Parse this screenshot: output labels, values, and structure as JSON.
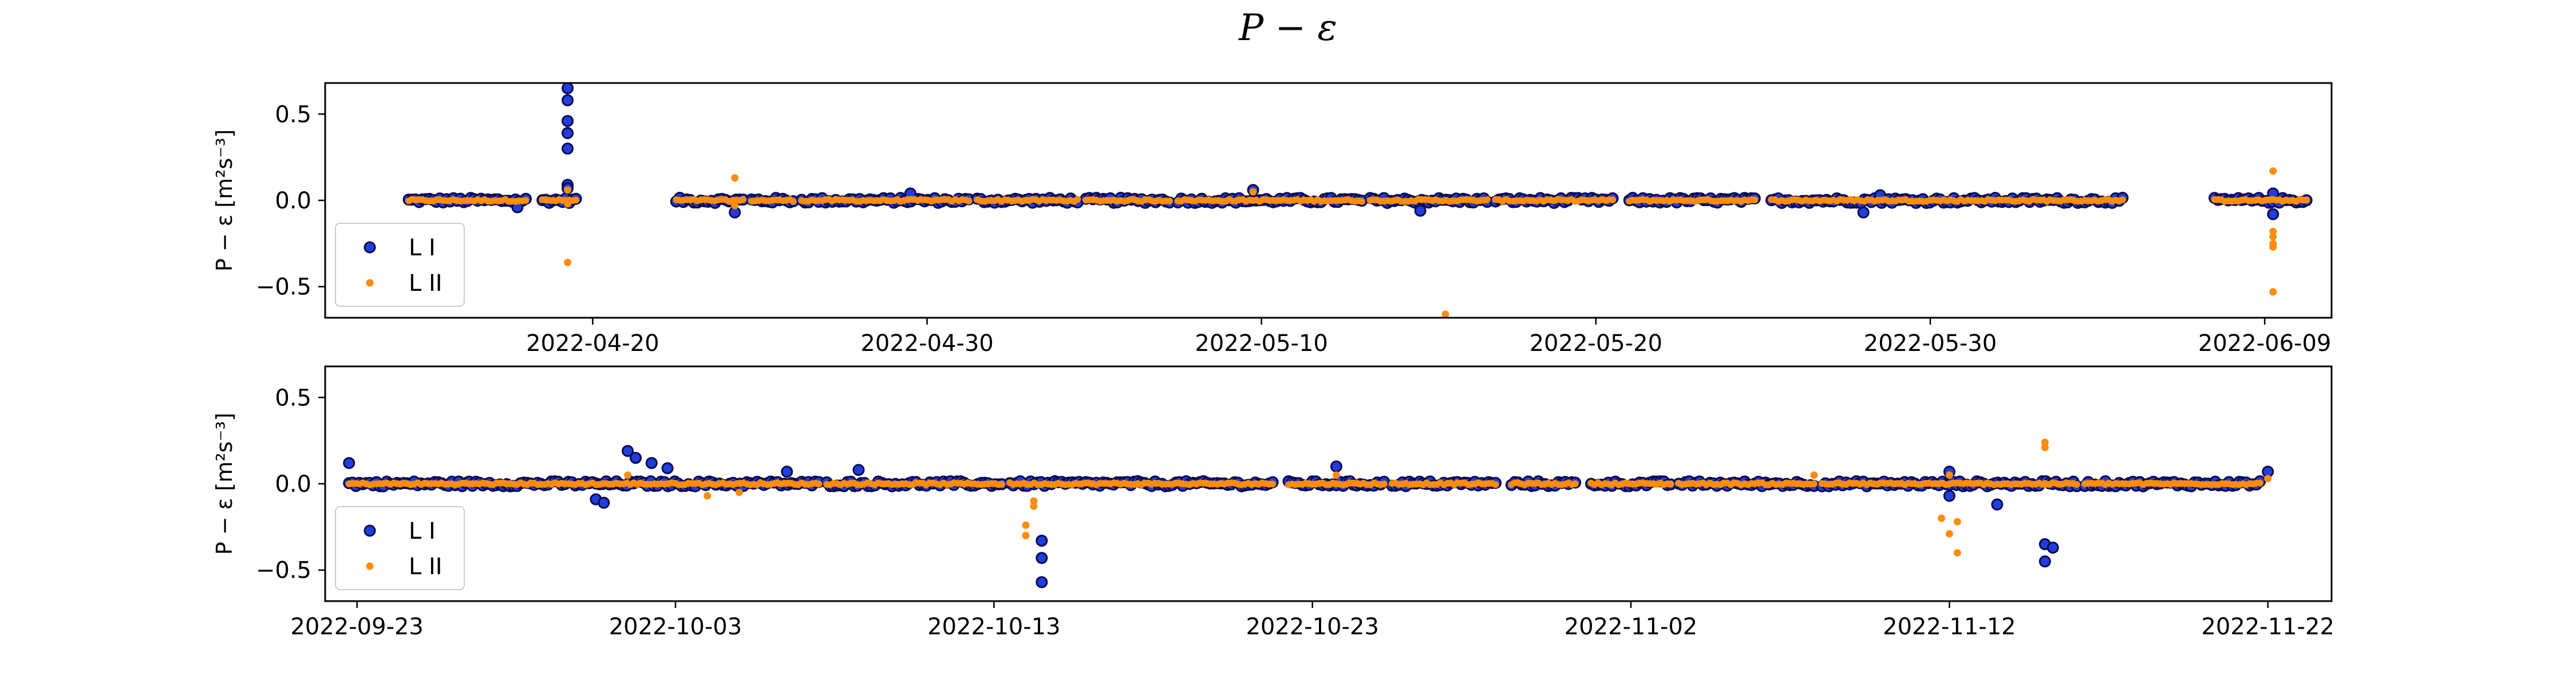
{
  "title": "P − ε",
  "colors": {
    "series1": "#1f3fdc",
    "series1_edge": "#0a0a50",
    "series2": "#ff8c0a"
  },
  "chart_data": [
    {
      "type": "scatter",
      "ylabel": "P − ε [m²s⁻³]",
      "xlim": [
        "2022-04-12",
        "2022-06-11"
      ],
      "ylim": [
        -0.68,
        0.68
      ],
      "xticks": [
        "2022-04-20",
        "2022-04-30",
        "2022-05-10",
        "2022-05-20",
        "2022-05-30",
        "2022-06-09"
      ],
      "yticks": [
        0.5,
        0.0,
        -0.5
      ],
      "ytick_labels": [
        "0.5",
        "0.0",
        "−0.5"
      ],
      "legend": "lower-left",
      "grid": false,
      "data_segments": [
        [
          "2022-04-14T12:00",
          "2022-04-18T00:00"
        ],
        [
          "2022-04-18T12:00",
          "2022-04-19T12:00"
        ],
        [
          "2022-04-22T12:00",
          "2022-04-24T12:00"
        ],
        [
          "2022-04-24T18:00",
          "2022-04-26T00:00"
        ],
        [
          "2022-04-26T06:00",
          "2022-05-01T06:00"
        ],
        [
          "2022-05-01T12:00",
          "2022-05-04T12:00"
        ],
        [
          "2022-05-04T18:00",
          "2022-05-07T06:00"
        ],
        [
          "2022-05-07T12:00",
          "2022-05-13T00:00"
        ],
        [
          "2022-05-13T06:00",
          "2022-05-16T18:00"
        ],
        [
          "2022-05-17T00:00",
          "2022-05-20T12:00"
        ],
        [
          "2022-05-21T00:00",
          "2022-05-24T18:00"
        ],
        [
          "2022-05-25T06:00",
          "2022-06-04T18:00"
        ],
        [
          "2022-06-07T12:00",
          "2022-06-10T06:00"
        ]
      ],
      "series": [
        {
          "name": "L I",
          "outliers": [
            {
              "x": "2022-04-19T06:00",
              "y": 0.65
            },
            {
              "x": "2022-04-19T06:00",
              "y": 0.58
            },
            {
              "x": "2022-04-19T06:00",
              "y": 0.46
            },
            {
              "x": "2022-04-19T06:00",
              "y": 0.39
            },
            {
              "x": "2022-04-19T06:00",
              "y": 0.3
            },
            {
              "x": "2022-04-19T06:00",
              "y": 0.09
            },
            {
              "x": "2022-04-19T06:00",
              "y": 0.07
            },
            {
              "x": "2022-04-24T06:00",
              "y": -0.07
            },
            {
              "x": "2022-04-17T18:00",
              "y": -0.04
            },
            {
              "x": "2022-04-29T12:00",
              "y": 0.04
            },
            {
              "x": "2022-05-09T18:00",
              "y": 0.06
            },
            {
              "x": "2022-05-14T18:00",
              "y": -0.06
            },
            {
              "x": "2022-05-28T00:00",
              "y": -0.07
            },
            {
              "x": "2022-05-28T12:00",
              "y": 0.03
            },
            {
              "x": "2022-06-09T06:00",
              "y": -0.08
            },
            {
              "x": "2022-06-09T06:00",
              "y": 0.04
            }
          ]
        },
        {
          "name": "L II",
          "outliers": [
            {
              "x": "2022-04-19T06:00",
              "y": -0.36
            },
            {
              "x": "2022-04-19T06:00",
              "y": 0.06
            },
            {
              "x": "2022-04-19T06:00",
              "y": -0.02
            },
            {
              "x": "2022-04-24T06:00",
              "y": 0.13
            },
            {
              "x": "2022-04-24T06:00",
              "y": -0.03
            },
            {
              "x": "2022-05-15T12:00",
              "y": -0.69
            },
            {
              "x": "2022-05-15T12:00",
              "y": -0.66
            },
            {
              "x": "2022-05-09T18:00",
              "y": 0.05
            },
            {
              "x": "2022-06-09T06:00",
              "y": 0.17
            },
            {
              "x": "2022-06-09T06:00",
              "y": -0.18
            },
            {
              "x": "2022-06-09T06:00",
              "y": -0.21
            },
            {
              "x": "2022-06-09T06:00",
              "y": -0.25
            },
            {
              "x": "2022-06-09T06:00",
              "y": -0.27
            },
            {
              "x": "2022-06-09T06:00",
              "y": -0.53
            }
          ]
        }
      ]
    },
    {
      "type": "scatter",
      "ylabel": "P − ε [m²s⁻³]",
      "xlim": [
        "2022-09-22",
        "2022-11-24"
      ],
      "ylim": [
        -0.68,
        0.68
      ],
      "xticks": [
        "2022-09-23",
        "2022-10-03",
        "2022-10-13",
        "2022-10-23",
        "2022-11-02",
        "2022-11-12",
        "2022-11-22"
      ],
      "yticks": [
        0.5,
        0.0,
        -0.5
      ],
      "ytick_labels": [
        "0.5",
        "0.0",
        "−0.5"
      ],
      "legend": "lower-left",
      "grid": false,
      "data_segments": [
        [
          "2022-09-22T18:00",
          "2022-10-07T12:00"
        ],
        [
          "2022-10-07T18:00",
          "2022-10-13T06:00"
        ],
        [
          "2022-10-13T12:00",
          "2022-10-21T18:00"
        ],
        [
          "2022-10-22T06:00",
          "2022-10-25T06:00"
        ],
        [
          "2022-10-25T12:00",
          "2022-10-28T18:00"
        ],
        [
          "2022-10-29T06:00",
          "2022-10-31T06:00"
        ],
        [
          "2022-10-31T18:00",
          "2022-11-03T06:00"
        ],
        [
          "2022-11-03T12:00",
          "2022-11-07T18:00"
        ],
        [
          "2022-11-08T00:00",
          "2022-11-16T00:00"
        ],
        [
          "2022-11-16T06:00",
          "2022-11-21T18:00"
        ]
      ],
      "series": [
        {
          "name": "L I",
          "outliers": [
            {
              "x": "2022-09-22T18:00",
              "y": 0.12
            },
            {
              "x": "2022-10-01T12:00",
              "y": 0.19
            },
            {
              "x": "2022-10-01T18:00",
              "y": 0.15
            },
            {
              "x": "2022-10-02T06:00",
              "y": 0.12
            },
            {
              "x": "2022-10-02T18:00",
              "y": 0.09
            },
            {
              "x": "2022-09-30T12:00",
              "y": -0.09
            },
            {
              "x": "2022-09-30T18:00",
              "y": -0.11
            },
            {
              "x": "2022-10-06T12:00",
              "y": 0.07
            },
            {
              "x": "2022-10-08T18:00",
              "y": 0.08
            },
            {
              "x": "2022-10-14T12:00",
              "y": -0.33
            },
            {
              "x": "2022-10-14T12:00",
              "y": -0.43
            },
            {
              "x": "2022-10-14T12:00",
              "y": -0.57
            },
            {
              "x": "2022-10-23T18:00",
              "y": 0.1
            },
            {
              "x": "2022-11-12T00:00",
              "y": 0.07
            },
            {
              "x": "2022-11-12T00:00",
              "y": -0.07
            },
            {
              "x": "2022-11-13T12:00",
              "y": -0.12
            },
            {
              "x": "2022-11-15T00:00",
              "y": -0.35
            },
            {
              "x": "2022-11-15T06:00",
              "y": -0.37
            },
            {
              "x": "2022-11-15T00:00",
              "y": -0.45
            },
            {
              "x": "2022-11-22T00:00",
              "y": 0.07
            }
          ]
        },
        {
          "name": "L II",
          "outliers": [
            {
              "x": "2022-10-01T12:00",
              "y": 0.05
            },
            {
              "x": "2022-10-04T00:00",
              "y": -0.07
            },
            {
              "x": "2022-10-05T00:00",
              "y": -0.05
            },
            {
              "x": "2022-10-14T06:00",
              "y": -0.1
            },
            {
              "x": "2022-10-14T06:00",
              "y": -0.13
            },
            {
              "x": "2022-10-14T00:00",
              "y": -0.24
            },
            {
              "x": "2022-10-14T00:00",
              "y": -0.3
            },
            {
              "x": "2022-10-23T18:00",
              "y": 0.05
            },
            {
              "x": "2022-11-07T18:00",
              "y": 0.05
            },
            {
              "x": "2022-11-11T18:00",
              "y": -0.2
            },
            {
              "x": "2022-11-12T00:00",
              "y": -0.29
            },
            {
              "x": "2022-11-12T06:00",
              "y": -0.22
            },
            {
              "x": "2022-11-12T06:00",
              "y": -0.4
            },
            {
              "x": "2022-11-12T00:00",
              "y": 0.05
            },
            {
              "x": "2022-11-15T00:00",
              "y": 0.21
            },
            {
              "x": "2022-11-15T00:00",
              "y": 0.24
            },
            {
              "x": "2022-11-15T00:00",
              "y": 0.0
            },
            {
              "x": "2022-11-22T00:00",
              "y": 0.03
            }
          ]
        }
      ]
    }
  ]
}
